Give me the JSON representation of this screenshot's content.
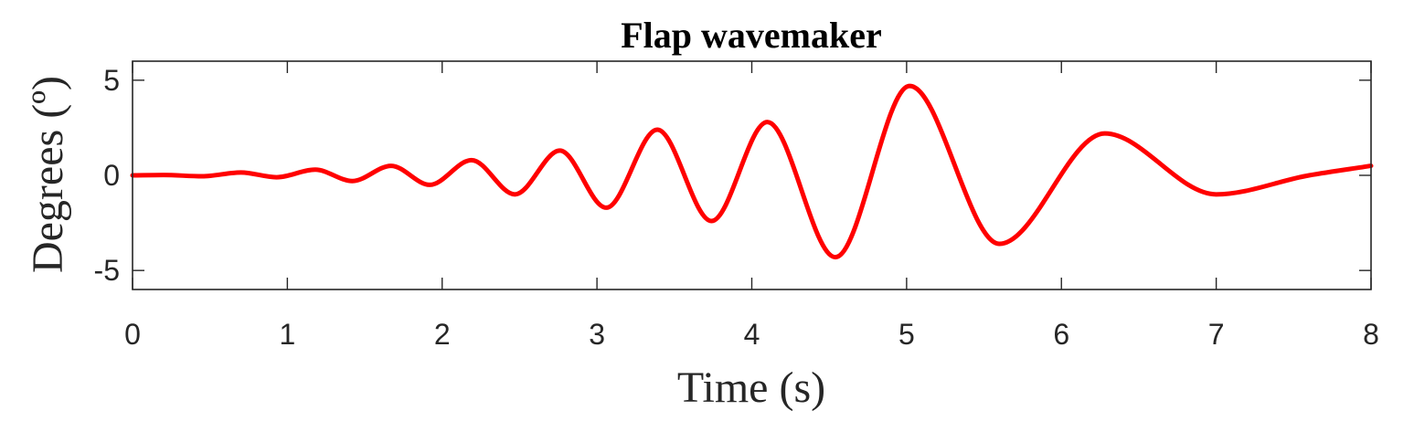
{
  "chart_data": {
    "type": "line",
    "title": "Flap wavemaker",
    "xlabel": "Time (s)",
    "ylabel": "Degrees (º)",
    "xlim": [
      0,
      8
    ],
    "ylim": [
      -6,
      6
    ],
    "xticks": [
      {
        "value": 0,
        "label": "0"
      },
      {
        "value": 1,
        "label": "1"
      },
      {
        "value": 2,
        "label": "2"
      },
      {
        "value": 3,
        "label": "3"
      },
      {
        "value": 4,
        "label": "4"
      },
      {
        "value": 5,
        "label": "5"
      },
      {
        "value": 6,
        "label": "6"
      },
      {
        "value": 7,
        "label": "7"
      },
      {
        "value": 8,
        "label": "8"
      }
    ],
    "yticks": [
      {
        "value": -5,
        "label": "-5"
      },
      {
        "value": 0,
        "label": "0"
      },
      {
        "value": 5,
        "label": "5"
      }
    ],
    "grid": false,
    "series": [
      {
        "color": "#ff0000",
        "x": [
          0,
          0.2,
          0.45,
          0.7,
          0.93,
          1.18,
          1.42,
          1.67,
          1.92,
          2.19,
          2.47,
          2.76,
          3.06,
          3.39,
          3.74,
          4.1,
          4.54,
          5.02,
          5.6,
          6.28,
          7.0,
          7.6,
          8.0
        ],
        "y": [
          0.0,
          0.02,
          -0.05,
          0.15,
          -0.1,
          0.3,
          -0.3,
          0.5,
          -0.5,
          0.8,
          -1.0,
          1.3,
          -1.7,
          2.4,
          -2.4,
          2.8,
          -4.3,
          4.7,
          -3.6,
          2.2,
          -1.0,
          0.0,
          0.5
        ]
      }
    ]
  }
}
